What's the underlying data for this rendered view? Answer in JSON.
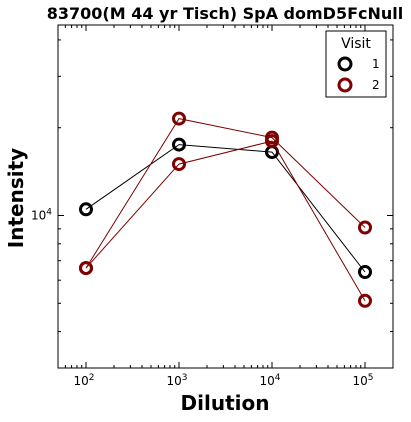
{
  "chart_data": {
    "type": "line",
    "title": "83700(M 44 yr Tisch) SpA domD5FcNull",
    "xlabel": "Dilution",
    "ylabel": "Intensity",
    "xscale": "log",
    "yscale": "log",
    "xlim": [
      50,
      200000
    ],
    "ylim": [
      3000,
      45000
    ],
    "x_ticks": [
      {
        "base": "10",
        "exp": "2",
        "value": 100
      },
      {
        "base": "10",
        "exp": "3",
        "value": 1000
      },
      {
        "base": "10",
        "exp": "4",
        "value": 10000
      },
      {
        "base": "10",
        "exp": "5",
        "value": 100000
      }
    ],
    "y_ticks": [
      {
        "base": "10",
        "exp": "4",
        "value": 10000
      }
    ],
    "y_minor_ticks": [
      4000,
      5000,
      6000,
      7000,
      8000,
      9000,
      20000,
      30000,
      40000
    ],
    "grid": false,
    "legend": {
      "title": "Visit",
      "position": "top-right",
      "entries": [
        {
          "label": "1",
          "color": "#000000"
        },
        {
          "label": "2",
          "color": "#7f0000"
        }
      ]
    },
    "series": [
      {
        "name": "1",
        "color": "#000000",
        "x": [
          100,
          1000,
          10000,
          100000
        ],
        "y": [
          10500,
          17500,
          16500,
          6400
        ]
      },
      {
        "name": "2",
        "color": "#7f0000",
        "x": [
          100,
          1000,
          10000,
          100000
        ],
        "y": [
          6600,
          21500,
          18500,
          9100
        ]
      },
      {
        "name": "2",
        "color": "#7f0000",
        "x": [
          100,
          1000,
          10000,
          100000
        ],
        "y": [
          6600,
          15000,
          18000,
          5100
        ]
      }
    ]
  }
}
